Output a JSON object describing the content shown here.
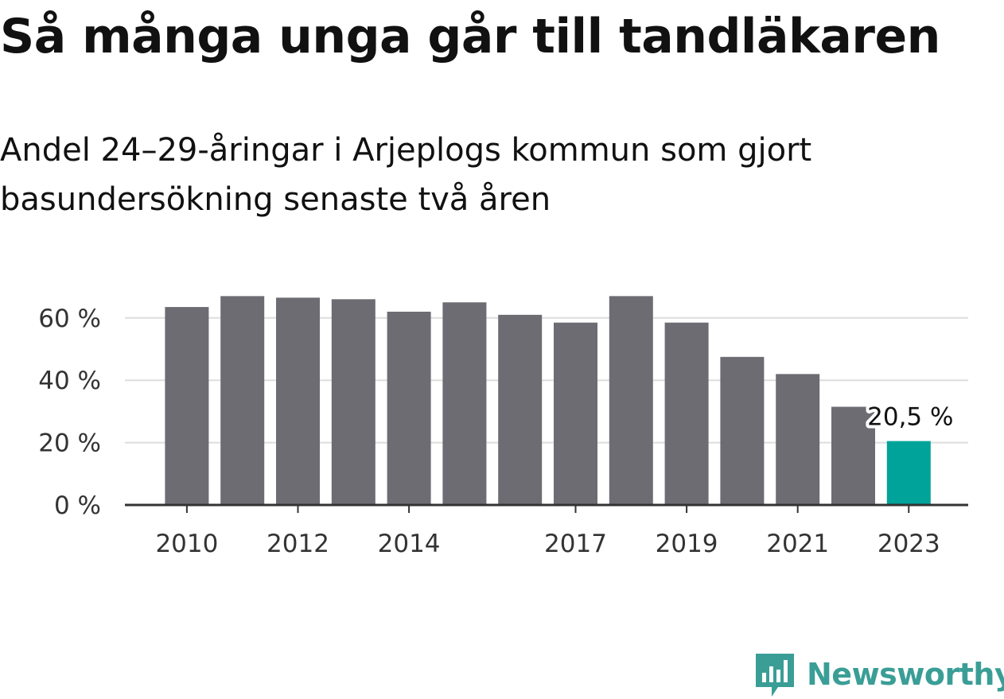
{
  "title": "Så många unga går till tandläkaren",
  "subtitle": "Andel 24–29-åringar i Arjeplogs kommun som gjort basundersökning senaste två åren",
  "brand": "Newsworthy",
  "colors": {
    "bar": "#6d6c73",
    "highlight": "#00a39a",
    "grid": "#dddddd",
    "axis": "#333333",
    "brand": "#3a9e96"
  },
  "chart_data": {
    "type": "bar",
    "categories": [
      "2010",
      "2011",
      "2012",
      "2013",
      "2014",
      "2015",
      "2016",
      "2017",
      "2018",
      "2019",
      "2020",
      "2021",
      "2022",
      "2023"
    ],
    "values": [
      63.5,
      67,
      66.5,
      66,
      62,
      65,
      61,
      58.5,
      67,
      58.5,
      47.5,
      42,
      31.5,
      20.5
    ],
    "x_tick_labels": [
      "2010",
      "",
      "2012",
      "",
      "2014",
      "",
      "",
      "2017",
      "",
      "2019",
      "",
      "2021",
      "",
      "2023"
    ],
    "y_ticks": [
      0,
      20,
      40,
      60
    ],
    "y_tick_labels": [
      "0 %",
      "20 %",
      "40 %",
      "60 %"
    ],
    "ylim": [
      0,
      70
    ],
    "highlight_index": 13,
    "data_label": "20,5 %",
    "grid": true,
    "legend": "none"
  }
}
